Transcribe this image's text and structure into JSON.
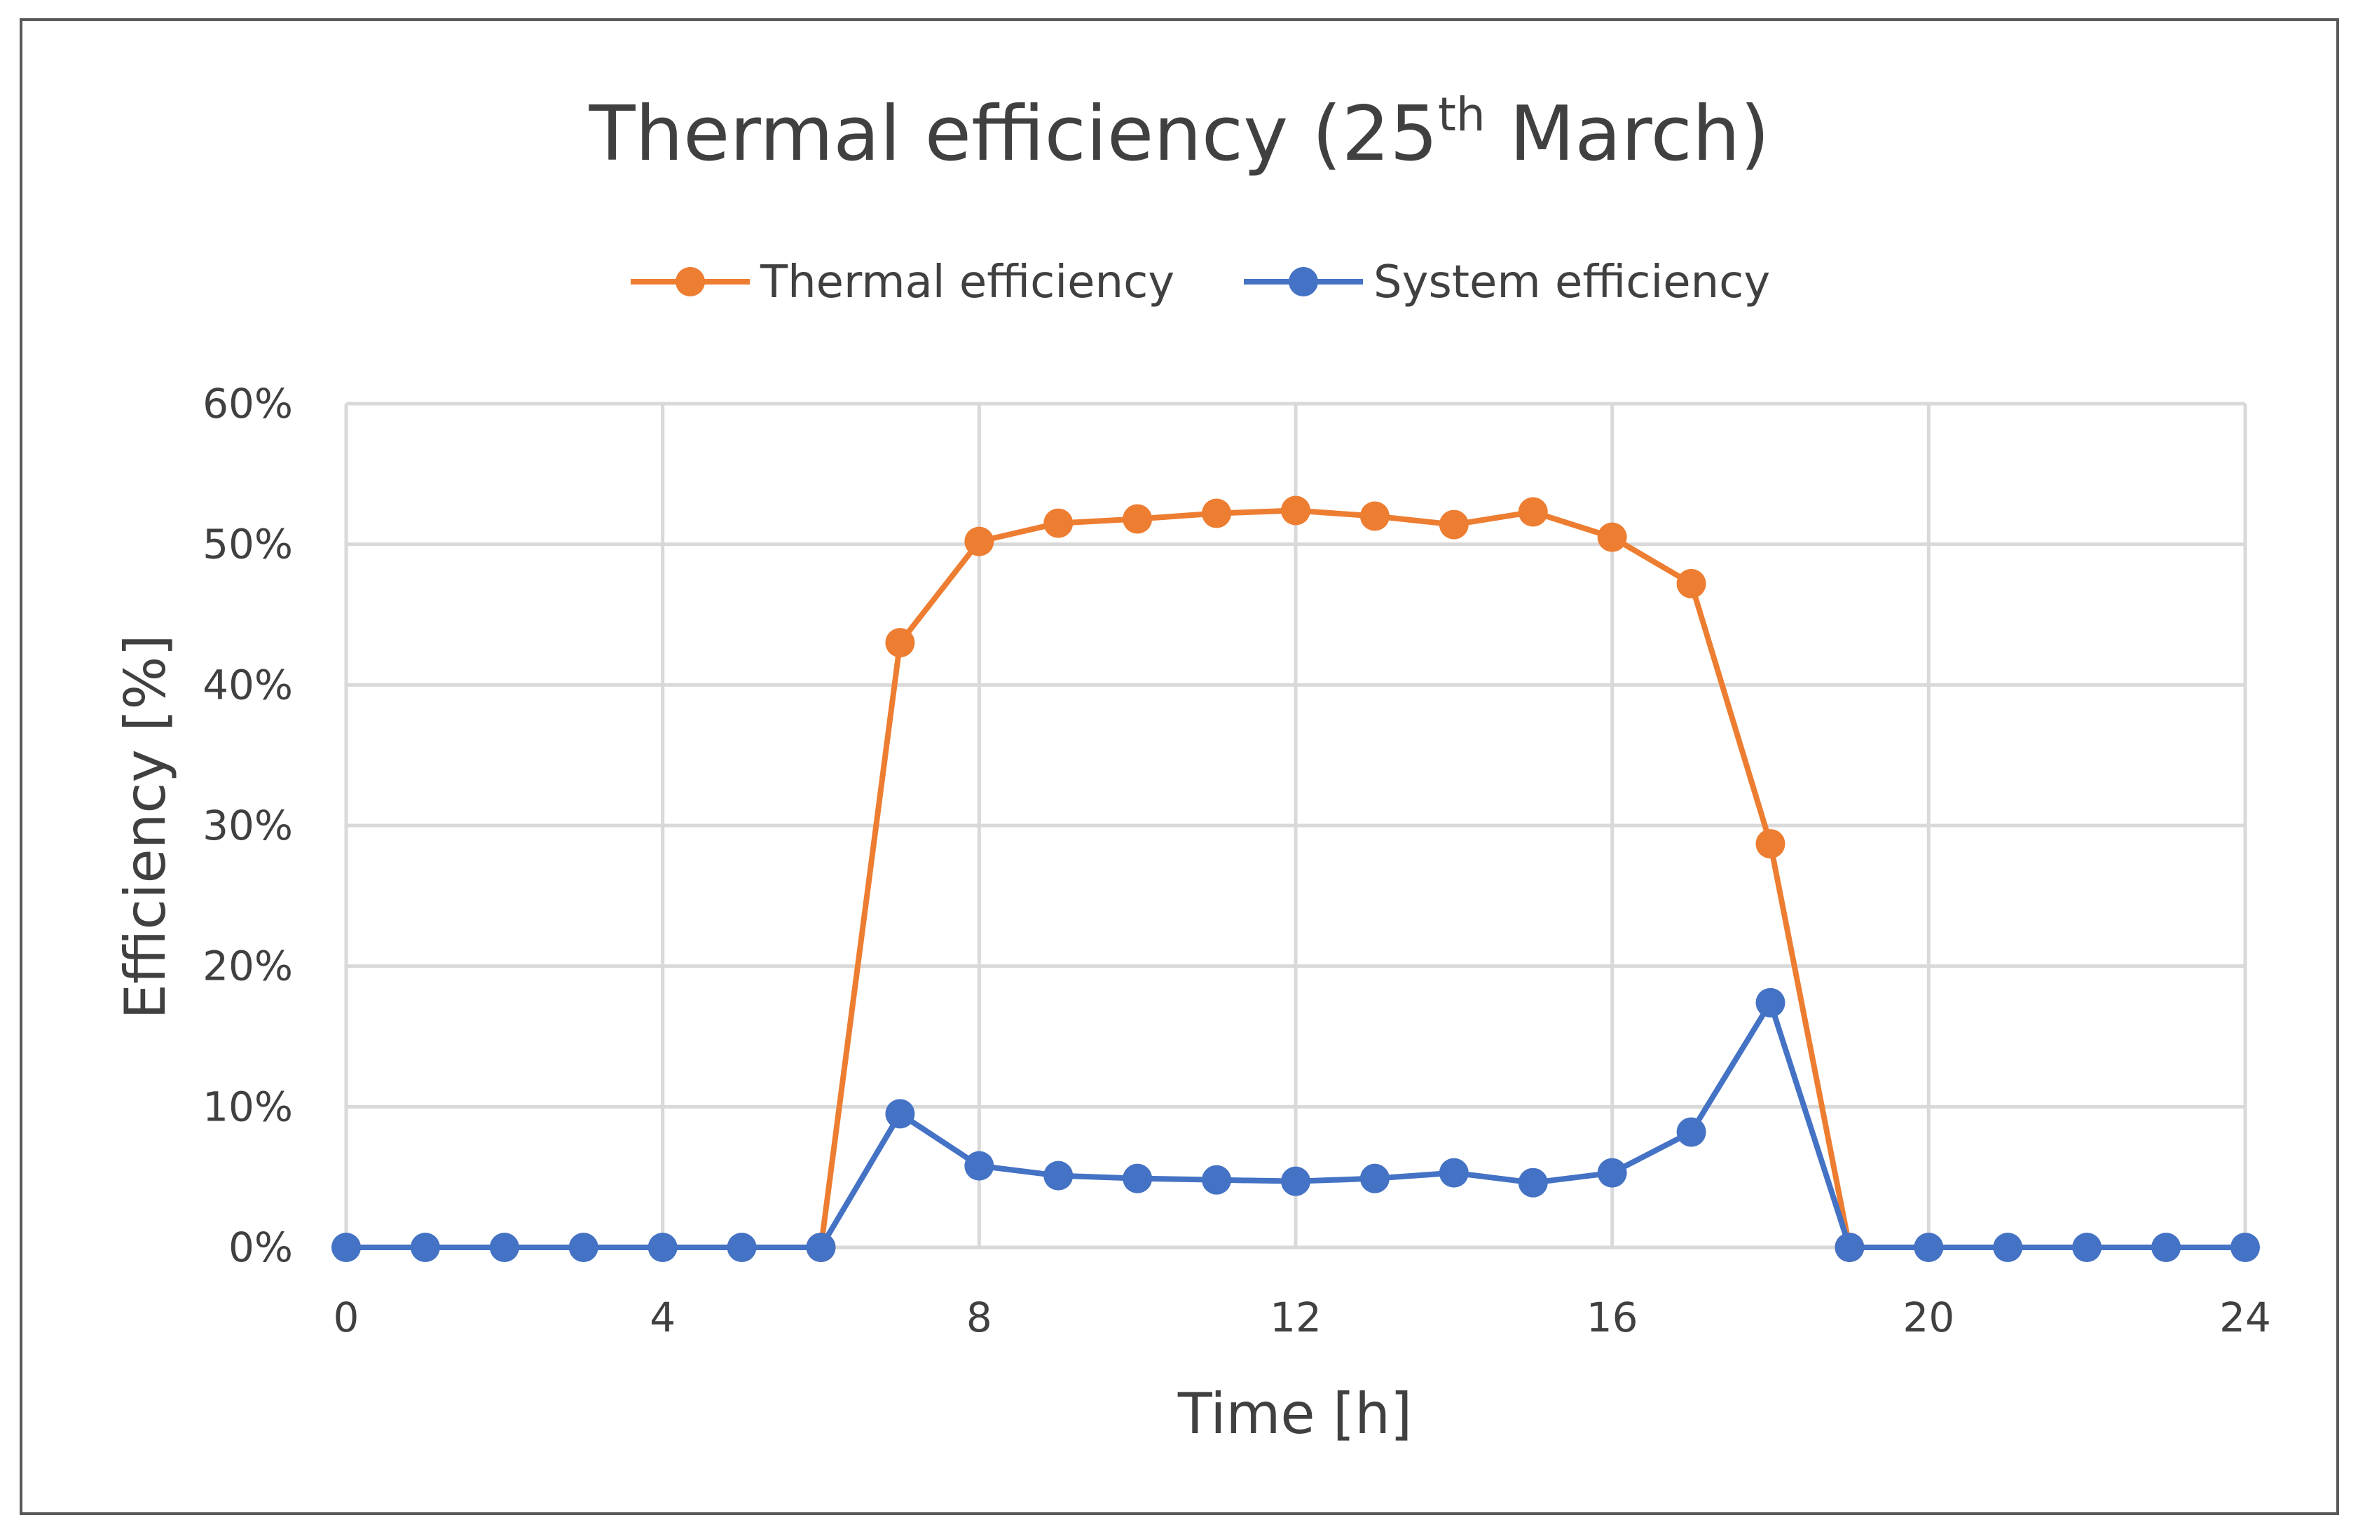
{
  "chart_data": {
    "type": "line",
    "title": "Thermal efficiency (25th March)",
    "title_main": "Thermal efficiency (25",
    "title_sup": "th",
    "title_end": " March)",
    "xlabel": "Time [h]",
    "ylabel": "Efficiency [%]",
    "xlim": [
      0,
      24
    ],
    "ylim": [
      0,
      60
    ],
    "xticks": [
      0,
      4,
      8,
      12,
      16,
      20,
      24
    ],
    "xtick_labels": [
      "0",
      "4",
      "8",
      "12",
      "16",
      "20",
      "24"
    ],
    "yticks": [
      0,
      10,
      20,
      30,
      40,
      50,
      60
    ],
    "ytick_labels": [
      "0%",
      "10%",
      "20%",
      "30%",
      "40%",
      "50%",
      "60%"
    ],
    "grid": true,
    "legend_position": "top-center",
    "x": [
      0,
      1,
      2,
      3,
      4,
      5,
      6,
      7,
      8,
      9,
      10,
      11,
      12,
      13,
      14,
      15,
      16,
      17,
      18,
      19,
      20,
      21,
      22,
      23,
      24
    ],
    "series": [
      {
        "name": "Thermal efficiency",
        "color": "#ED7D31",
        "x": [
          6,
          7,
          8,
          9,
          10,
          11,
          12,
          13,
          14,
          15,
          16,
          17,
          18,
          19
        ],
        "values": [
          0,
          43,
          50.2,
          51.5,
          51.8,
          52.2,
          52.4,
          52,
          51.4,
          52.3,
          50.5,
          47.2,
          28.7,
          0
        ]
      },
      {
        "name": "System efficiency",
        "color": "#4472C4",
        "x": [
          0,
          1,
          2,
          3,
          4,
          5,
          6,
          7,
          8,
          9,
          10,
          11,
          12,
          13,
          14,
          15,
          16,
          17,
          18,
          19,
          20,
          21,
          22,
          23,
          24
        ],
        "values": [
          0,
          0,
          0,
          0,
          0,
          0,
          0,
          9.5,
          5.8,
          5.1,
          4.9,
          4.8,
          4.7,
          4.9,
          5.3,
          4.6,
          5.3,
          8.2,
          17.4,
          0,
          0,
          0,
          0,
          0,
          0
        ]
      }
    ]
  }
}
